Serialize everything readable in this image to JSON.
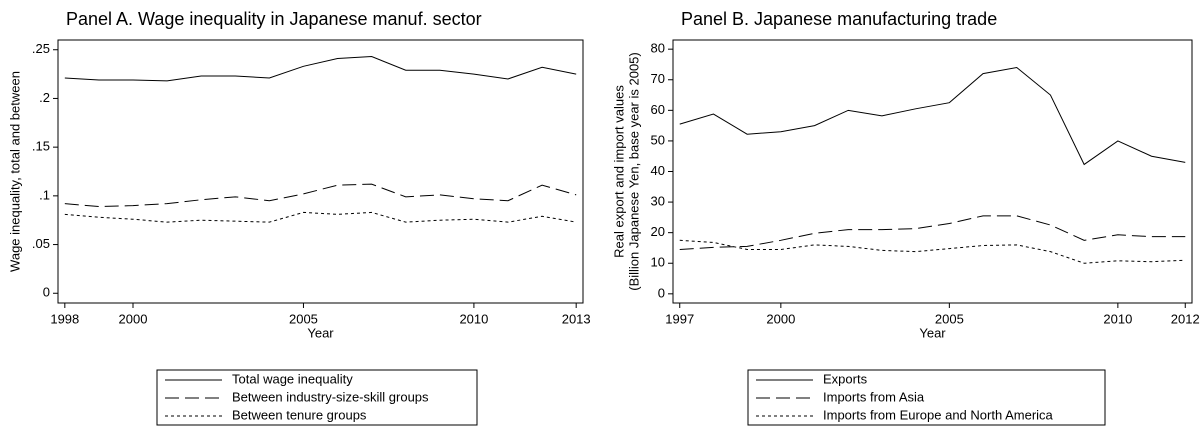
{
  "chart_data": [
    {
      "type": "line",
      "title": "Panel A. Wage inequality in Japanese manuf. sector",
      "x_label": "Year",
      "y_label": [
        "Wage inequality, total and between"
      ],
      "x": [
        1998,
        1999,
        2000,
        2001,
        2002,
        2003,
        2004,
        2005,
        2006,
        2007,
        2008,
        2009,
        2010,
        2011,
        2012,
        2013
      ],
      "series": [
        {
          "name": "Total wage inequality",
          "color": "#000000",
          "dash": "solid",
          "values": [
            0.221,
            0.219,
            0.219,
            0.218,
            0.223,
            0.223,
            0.221,
            0.233,
            0.241,
            0.243,
            0.229,
            0.229,
            0.225,
            0.22,
            0.232,
            0.225
          ]
        },
        {
          "name": "Between industry-size-skill groups",
          "color": "#000000",
          "dash": "long",
          "values": [
            0.092,
            0.089,
            0.09,
            0.092,
            0.096,
            0.099,
            0.095,
            0.102,
            0.111,
            0.112,
            0.099,
            0.101,
            0.097,
            0.095,
            0.111,
            0.101
          ]
        },
        {
          "name": "Between tenure groups",
          "color": "#000000",
          "dash": "short",
          "values": [
            0.081,
            0.078,
            0.076,
            0.073,
            0.075,
            0.074,
            0.073,
            0.083,
            0.081,
            0.083,
            0.073,
            0.075,
            0.076,
            0.073,
            0.079,
            0.073
          ]
        }
      ],
      "xlim": [
        1997.8,
        2013.2
      ],
      "xticks": [
        1998,
        2000,
        2005,
        2010,
        2013
      ],
      "ylim": [
        -0.01,
        0.26
      ],
      "yticks": [
        0,
        {
          "value": 0.05,
          "label": ".05"
        },
        {
          "value": 0.1,
          "label": ".1"
        },
        {
          "value": 0.15,
          "label": ".15"
        },
        {
          "value": 0.2,
          "label": ".2"
        },
        {
          "value": 0.25,
          "label": ".25"
        }
      ]
    },
    {
      "type": "line",
      "title": "Panel B. Japanese manufacturing trade",
      "x_label": "Year",
      "y_label": [
        "Real export and import values",
        "(Billion Japanese Yen, base year is 2005)"
      ],
      "x": [
        1997,
        1998,
        1999,
        2000,
        2001,
        2002,
        2003,
        2004,
        2005,
        2006,
        2007,
        2008,
        2009,
        2010,
        2011,
        2012
      ],
      "series": [
        {
          "name": "Exports",
          "color": "#000000",
          "dash": "solid",
          "values": [
            55.5,
            58.8,
            52.2,
            53,
            55,
            60,
            58.2,
            60.5,
            62.5,
            72,
            74,
            65,
            42.3,
            50,
            45,
            43
          ]
        },
        {
          "name": "Imports from Asia",
          "color": "#000000",
          "dash": "long",
          "values": [
            14.5,
            15.2,
            15.5,
            17.5,
            19.8,
            21,
            21,
            21.3,
            23,
            25.5,
            25.5,
            22.5,
            17.5,
            19.3,
            18.7,
            18.7
          ]
        },
        {
          "name": "Imports from Europe and North America",
          "color": "#000000",
          "dash": "short",
          "values": [
            17.5,
            16.8,
            14.5,
            14.5,
            16,
            15.5,
            14.2,
            13.8,
            14.8,
            15.8,
            16,
            13.8,
            10,
            10.8,
            10.5,
            11
          ]
        }
      ],
      "xlim": [
        1996.8,
        2012.2
      ],
      "xticks": [
        1997,
        2000,
        2005,
        2010,
        2012
      ],
      "ylim": [
        -3,
        83
      ],
      "yticks": [
        0,
        10,
        20,
        30,
        40,
        50,
        60,
        70,
        80
      ]
    }
  ]
}
